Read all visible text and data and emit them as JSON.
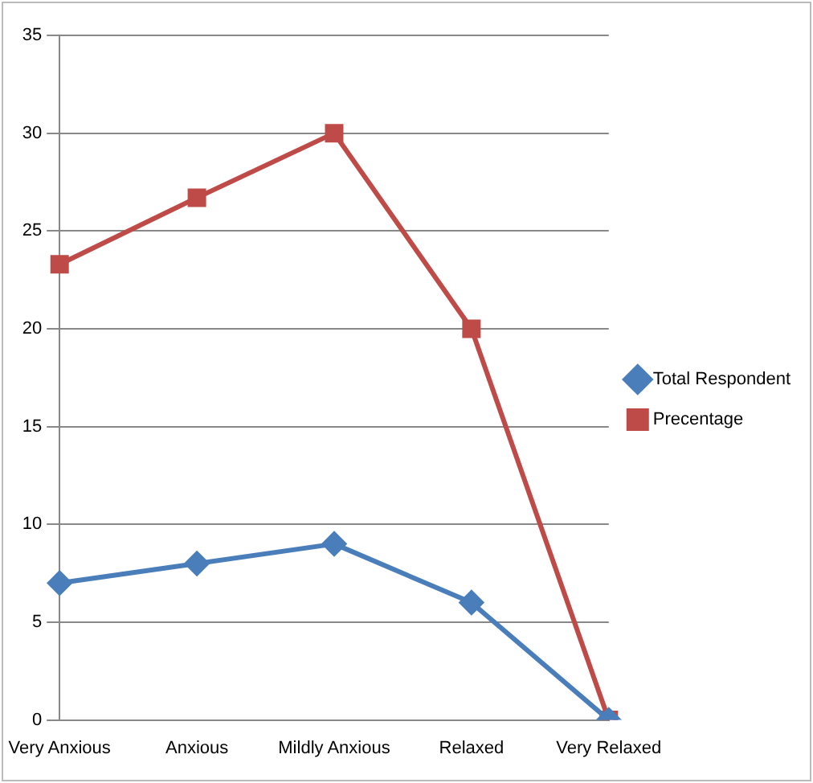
{
  "chart_data": {
    "type": "line",
    "categories": [
      "Very Anxious",
      "Anxious",
      "Mildly Anxious",
      "Relaxed",
      "Very Relaxed"
    ],
    "series": [
      {
        "name": "Total Respondent",
        "color": "#4a7ebb",
        "values": [
          7,
          8,
          9,
          6,
          0
        ],
        "marker": "diamond"
      },
      {
        "name": "Precentage",
        "color": "#be4b48",
        "values": [
          23.3,
          26.7,
          30,
          20,
          0
        ],
        "marker": "square"
      }
    ],
    "ylim": [
      0,
      35
    ],
    "yticks": [
      0,
      5,
      10,
      15,
      20,
      25,
      30,
      35
    ],
    "grid": "y",
    "legend": "right"
  }
}
